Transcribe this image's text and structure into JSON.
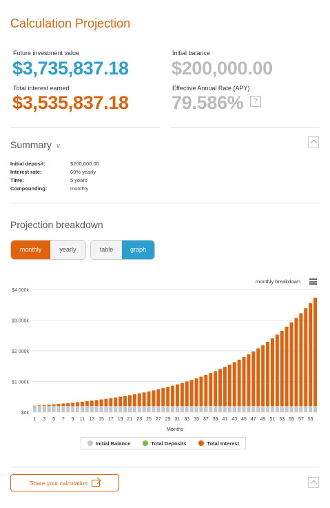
{
  "title": "Calculation Projection",
  "results": {
    "future_label": "Future investment value",
    "future_value": "$3,735,837.18",
    "interest_label": "Total interest earned",
    "interest_value": "$3,535,837.18",
    "initial_label": "Initial balance",
    "initial_value": "$200,000.00",
    "apy_label": "Effective Annual Rate (APY)",
    "apy_value": "79.586%",
    "help": "?"
  },
  "summary": {
    "heading": "Summary",
    "rows": [
      {
        "key": "Initial deposit:",
        "value": "$200,000.00"
      },
      {
        "key": "Interest rate:",
        "value": "60% yearly"
      },
      {
        "key": "Time:",
        "value": "5 years"
      },
      {
        "key": "Compounding:",
        "value": "monthly"
      }
    ]
  },
  "projection": {
    "heading": "Projection breakdown",
    "period_toggle": [
      "monthly",
      "yearly"
    ],
    "view_toggle": [
      "table",
      "graph"
    ],
    "chart_menu_label": "monthly breakdown"
  },
  "colors": {
    "accent_orange": "#e0620d",
    "accent_blue": "#2a9fd0",
    "initial_balance": "#c8c8c8",
    "total_deposits": "#6cc04a",
    "total_interest": "#e0620d"
  },
  "chart_data": {
    "type": "bar",
    "stacked": true,
    "xlabel": "Months",
    "ylabel": "",
    "ylim": [
      0,
      4000
    ],
    "y_ticks": [
      "$0k",
      "$1 000k",
      "$2 000k",
      "$3 000k",
      "$4 000k"
    ],
    "y_tick_values": [
      0,
      1000,
      2000,
      3000,
      4000
    ],
    "x_tick_labels": [
      "1",
      "3",
      "5",
      "7",
      "9",
      "11",
      "13",
      "15",
      "17",
      "19",
      "21",
      "23",
      "25",
      "27",
      "29",
      "31",
      "33",
      "35",
      "37",
      "39",
      "41",
      "43",
      "45",
      "47",
      "49",
      "51",
      "53",
      "55",
      "57",
      "59"
    ],
    "months": 60,
    "initial_balance_k": 200,
    "total_deposits_k": 0,
    "total_interest_k": [
      10,
      20.5,
      31.5,
      43.1,
      55.2,
      68,
      81.4,
      95.5,
      110.3,
      125.8,
      142.1,
      159.2,
      177.1,
      196,
      215.8,
      236.6,
      258.4,
      281.3,
      305.4,
      330.7,
      357.2,
      385.1,
      414.3,
      445,
      477.3,
      511.2,
      546.7,
      584,
      623.2,
      664.4,
      707.6,
      752.9,
      800.6,
      850.6,
      903.1,
      958.3,
      1016.2,
      1077,
      1140.8,
      1207.8,
      1278.2,
      1352.1,
      1429.7,
      1511.2,
      1596.8,
      1686.6,
      1780.9,
      1880,
      1984,
      2093.2,
      2207.9,
      2328.3,
      2454.7,
      2587.5,
      2726.9,
      2873.2,
      3026.8,
      3188.2,
      3357.6,
      3535.8
    ],
    "legend": [
      "Initial Balance",
      "Total Deposits",
      "Total Interest"
    ],
    "legend_position": "bottom",
    "grid": "horizontal"
  },
  "share": {
    "label": "Share your calculation"
  }
}
